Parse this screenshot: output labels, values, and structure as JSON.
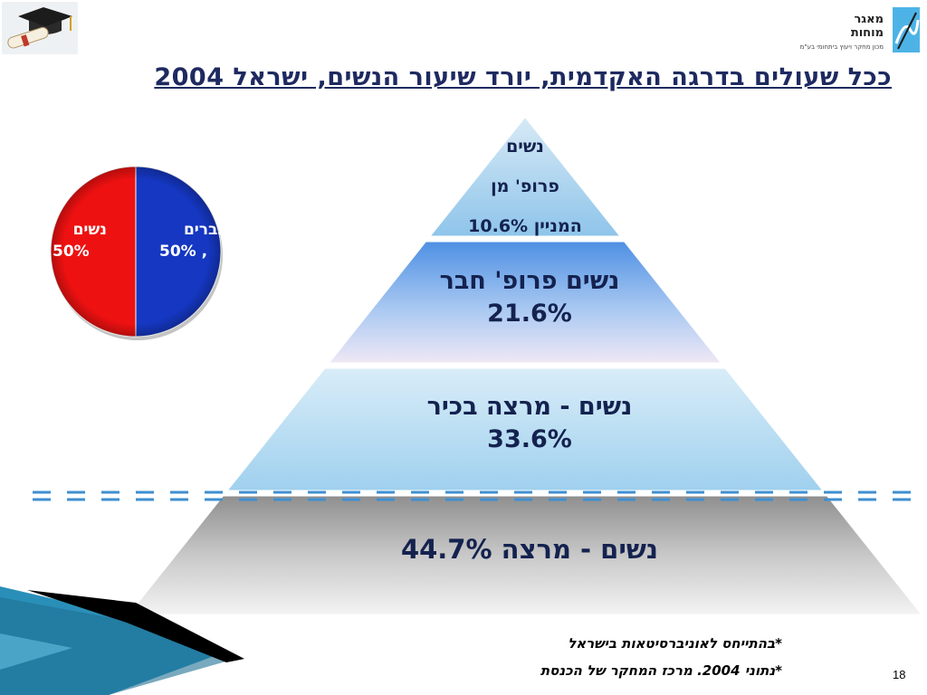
{
  "slide": {
    "title": "ככל שעולים בדרגה האקדמית, יורד שיעור הנשים, ישראל 2004",
    "page_number": "18",
    "footnotes": [
      "*בהתייחס לאוניברסיטאות בישראל",
      "*נתוני 2004. מרכז המחקר של הכנסת"
    ],
    "logo": {
      "line1": "מאגר",
      "line2": "מוחות",
      "tagline": "מכון מחקר ויעוץ ביתחומי בע\"מ",
      "icon": "pen-icon"
    },
    "top_left_icon": "graduation-cap-diploma-icon"
  },
  "chart_data": [
    {
      "type": "pie",
      "categories": [
        "גברים",
        "נשים"
      ],
      "values": [
        50,
        50
      ],
      "labels": [
        {
          "name": "גברים",
          "value": "50% ,"
        },
        {
          "name": "נשים",
          "value": "50%"
        }
      ],
      "colors": [
        "#1537c2",
        "#ee1111"
      ]
    },
    {
      "type": "bar",
      "layout": "pyramid",
      "tiers": [
        {
          "lines": [
            "נשים",
            "פרופ' מן",
            "המניין 10.6%"
          ],
          "value": 10.6
        },
        {
          "lines": [
            "נשים פרופ' חבר",
            "21.6%"
          ],
          "value": 21.6
        },
        {
          "lines": [
            "נשים - מרצה בכיר",
            "33.6%"
          ],
          "value": 33.6
        },
        {
          "lines": [
            "נשים - מרצה 44.7%"
          ],
          "value": 44.7
        }
      ],
      "units": "%"
    }
  ],
  "colors": {
    "title": "#1e2a60",
    "dash_line": "#3f8fd0",
    "tier_text": "#14224f"
  }
}
